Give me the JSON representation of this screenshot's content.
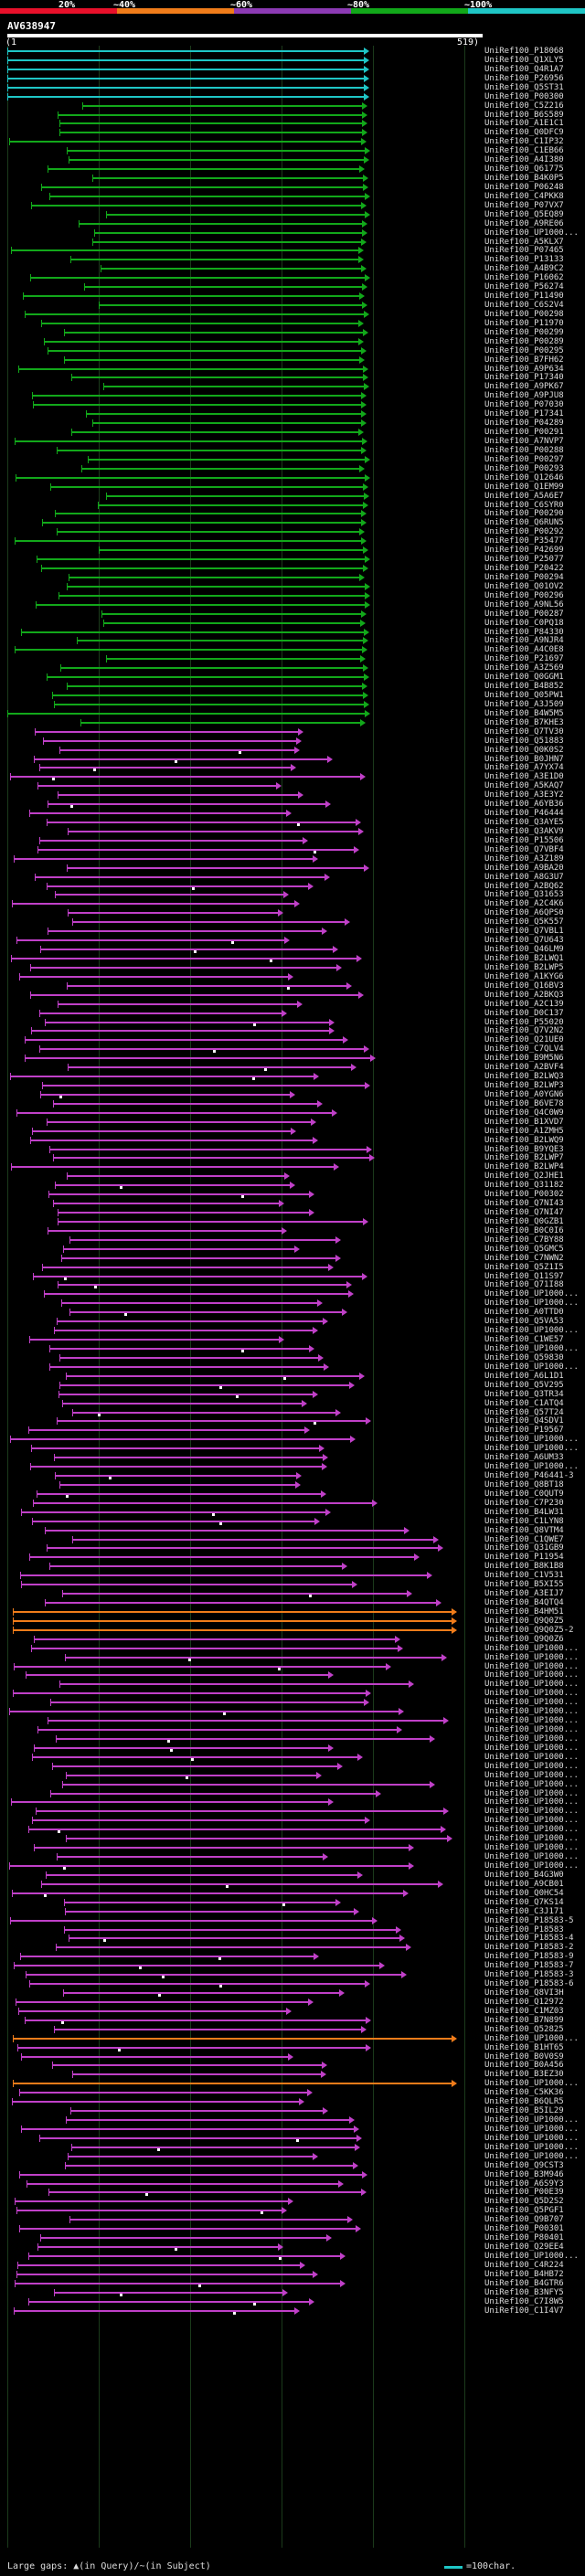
{
  "scale_bar": {
    "segments": [
      {
        "label": "20%",
        "color": "#e8102a"
      },
      {
        "label": "~40%",
        "color": "#f07c1a"
      },
      {
        "label": "~60%",
        "color": "#8c3ab4"
      },
      {
        "label": "~80%",
        "color": "#12a81a"
      },
      {
        "label": "~100%",
        "color": "#1fc6c6"
      }
    ]
  },
  "query": {
    "id": "AV638947",
    "start": "(1",
    "end": "519)"
  },
  "legend": {
    "gaps_text": "Large gaps: ▲(in Query)/~(in Subject)",
    "scale_text": "=100char."
  },
  "colors": {
    "cyan": "#1fc6c6",
    "green": "#12a81a",
    "purple": "#c040c8",
    "orange": "#f07c1a",
    "query": "#ffffff"
  },
  "hits": [
    {
      "label": "UniRef100_P18068",
      "c": "cyan"
    },
    {
      "label": "UniRef100_Q1XLY5",
      "c": "cyan"
    },
    {
      "label": "UniRef100_Q4R1A7",
      "c": "cyan"
    },
    {
      "label": "UniRef100_P26956",
      "c": "cyan"
    },
    {
      "label": "UniRef100_Q5ST31",
      "c": "cyan"
    },
    {
      "label": "UniRef100_P00300",
      "c": "cyan"
    },
    {
      "label": "UniRef100_C5Z216",
      "c": "green"
    },
    {
      "label": "UniRef100_B6S589",
      "c": "green"
    },
    {
      "label": "UniRef100_A1E1C1",
      "c": "green"
    },
    {
      "label": "UniRef100_Q0DFC9",
      "c": "green"
    },
    {
      "label": "UniRef100_C1IP32",
      "c": "green"
    },
    {
      "label": "UniRef100_C1EB66",
      "c": "green"
    },
    {
      "label": "UniRef100_A4I380",
      "c": "green"
    },
    {
      "label": "UniRef100_Q61775",
      "c": "green"
    },
    {
      "label": "UniRef100_B4K0P5",
      "c": "green"
    },
    {
      "label": "UniRef100_P06248",
      "c": "green"
    },
    {
      "label": "UniRef100_C4PKK8",
      "c": "green"
    },
    {
      "label": "UniRef100_P07VX7",
      "c": "green"
    },
    {
      "label": "UniRef100_Q5EQ89",
      "c": "green"
    },
    {
      "label": "UniRef100_A9RE06",
      "c": "green"
    },
    {
      "label": "UniRef100_UP1000...",
      "c": "green"
    },
    {
      "label": "UniRef100_A5KLX7",
      "c": "green"
    },
    {
      "label": "UniRef100_P07465",
      "c": "green"
    },
    {
      "label": "UniRef100_P13133",
      "c": "green"
    },
    {
      "label": "UniRef100_A4B9C2",
      "c": "green"
    },
    {
      "label": "UniRef100_P16062",
      "c": "green"
    },
    {
      "label": "UniRef100_P56274",
      "c": "green"
    },
    {
      "label": "UniRef100_P11490",
      "c": "green"
    },
    {
      "label": "UniRef100_C6S2V4",
      "c": "green"
    },
    {
      "label": "UniRef100_P00298",
      "c": "green"
    },
    {
      "label": "UniRef100_P11970",
      "c": "green"
    },
    {
      "label": "UniRef100_P00299",
      "c": "green"
    },
    {
      "label": "UniRef100_P00289",
      "c": "green"
    },
    {
      "label": "UniRef100_P00295",
      "c": "green"
    },
    {
      "label": "UniRef100_B7FH62",
      "c": "green"
    },
    {
      "label": "UniRef100_A9P634",
      "c": "green"
    },
    {
      "label": "UniRef100_P17340",
      "c": "green"
    },
    {
      "label": "UniRef100_A9PK67",
      "c": "green"
    },
    {
      "label": "UniRef100_A9PJU8",
      "c": "green"
    },
    {
      "label": "UniRef100_P07030",
      "c": "green"
    },
    {
      "label": "UniRef100_P17341",
      "c": "green"
    },
    {
      "label": "UniRef100_P04289",
      "c": "green"
    },
    {
      "label": "UniRef100_P00291",
      "c": "green"
    },
    {
      "label": "UniRef100_A7NVP7",
      "c": "green"
    },
    {
      "label": "UniRef100_P00288",
      "c": "green"
    },
    {
      "label": "UniRef100_P00297",
      "c": "green"
    },
    {
      "label": "UniRef100_P00293",
      "c": "green"
    },
    {
      "label": "UniRef100_Q12646",
      "c": "green"
    },
    {
      "label": "UniRef100_Q1EM99",
      "c": "green"
    },
    {
      "label": "UniRef100_A5A6E7",
      "c": "green"
    },
    {
      "label": "UniRef100_C6SYR0",
      "c": "green"
    },
    {
      "label": "UniRef100_P00290",
      "c": "green"
    },
    {
      "label": "UniRef100_Q6RUN5",
      "c": "green"
    },
    {
      "label": "UniRef100_P00292",
      "c": "green"
    },
    {
      "label": "UniRef100_P35477",
      "c": "green"
    },
    {
      "label": "UniRef100_P42699",
      "c": "green"
    },
    {
      "label": "UniRef100_P25077",
      "c": "green"
    },
    {
      "label": "UniRef100_P20422",
      "c": "green"
    },
    {
      "label": "UniRef100_P00294",
      "c": "green"
    },
    {
      "label": "UniRef100_Q01OV2",
      "c": "green"
    },
    {
      "label": "UniRef100_P00296",
      "c": "green"
    },
    {
      "label": "UniRef100_A9NL56",
      "c": "green"
    },
    {
      "label": "UniRef100_P00287",
      "c": "green"
    },
    {
      "label": "UniRef100_C0PQ18",
      "c": "green"
    },
    {
      "label": "UniRef100_P84330",
      "c": "green"
    },
    {
      "label": "UniRef100_A9NJR4",
      "c": "green"
    },
    {
      "label": "UniRef100_A4C0E8",
      "c": "green"
    },
    {
      "label": "UniRef100_P21697",
      "c": "green"
    },
    {
      "label": "UniRef100_A3Z569",
      "c": "green"
    },
    {
      "label": "UniRef100_Q0GGM1",
      "c": "green"
    },
    {
      "label": "UniRef100_B4B852",
      "c": "green"
    },
    {
      "label": "UniRef100_Q05PW1",
      "c": "green"
    },
    {
      "label": "UniRef100_A3J509",
      "c": "green"
    },
    {
      "label": "UniRef100_B4W5M5",
      "c": "green"
    },
    {
      "label": "UniRef100_B7KHE3",
      "c": "green"
    },
    {
      "label": "UniRef100_Q7TV30",
      "c": "purple"
    },
    {
      "label": "UniRef100_Q51883",
      "c": "purple"
    },
    {
      "label": "UniRef100_Q0K0S2",
      "c": "purple"
    },
    {
      "label": "UniRef100_B0JHN7",
      "c": "purple"
    },
    {
      "label": "UniRef100_A7YX74",
      "c": "purple"
    },
    {
      "label": "UniRef100_A3E1D0",
      "c": "purple"
    },
    {
      "label": "UniRef100_A5KAQ7",
      "c": "purple"
    },
    {
      "label": "UniRef100_A3E3Y2",
      "c": "purple"
    },
    {
      "label": "UniRef100_A6YB36",
      "c": "purple"
    },
    {
      "label": "UniRef100_P46444",
      "c": "purple"
    },
    {
      "label": "UniRef100_Q3AYE5",
      "c": "purple"
    },
    {
      "label": "UniRef100_Q3AKV9",
      "c": "purple"
    },
    {
      "label": "UniRef100_P15506",
      "c": "purple"
    },
    {
      "label": "UniRef100_Q7VBF4",
      "c": "purple"
    },
    {
      "label": "UniRef100_A3Z189",
      "c": "purple"
    },
    {
      "label": "UniRef100_A9BA20",
      "c": "purple"
    },
    {
      "label": "UniRef100_A8G3U7",
      "c": "purple"
    },
    {
      "label": "UniRef100_A2BQ62",
      "c": "purple"
    },
    {
      "label": "UniRef100_Q31653",
      "c": "purple"
    },
    {
      "label": "UniRef100_A2C4K6",
      "c": "purple"
    },
    {
      "label": "UniRef100_A6QPS0",
      "c": "purple"
    },
    {
      "label": "UniRef100_Q5K557",
      "c": "purple"
    },
    {
      "label": "UniRef100_Q7VBL1",
      "c": "purple"
    },
    {
      "label": "UniRef100_Q7U643",
      "c": "purple"
    },
    {
      "label": "UniRef100_Q46LM9",
      "c": "purple"
    },
    {
      "label": "UniRef100_B2LWQ1",
      "c": "purple"
    },
    {
      "label": "UniRef100_B2LWP5",
      "c": "purple"
    },
    {
      "label": "UniRef100_A1KYG6",
      "c": "purple"
    },
    {
      "label": "UniRef100_Q16BV3",
      "c": "purple"
    },
    {
      "label": "UniRef100_A2BKQ3",
      "c": "purple"
    },
    {
      "label": "UniRef100_A2C139",
      "c": "purple"
    },
    {
      "label": "UniRef100_D0C137",
      "c": "purple"
    },
    {
      "label": "UniRef100_P55020",
      "c": "purple"
    },
    {
      "label": "UniRef100_Q7V2N2",
      "c": "purple"
    },
    {
      "label": "UniRef100_Q21UE0",
      "c": "purple"
    },
    {
      "label": "UniRef100_C7QLV4",
      "c": "purple"
    },
    {
      "label": "UniRef100_B9M5N6",
      "c": "purple"
    },
    {
      "label": "UniRef100_A2BVF4",
      "c": "purple"
    },
    {
      "label": "UniRef100_B2LWQ3",
      "c": "purple"
    },
    {
      "label": "UniRef100_B2LWP3",
      "c": "purple"
    },
    {
      "label": "UniRef100_A0YGN6",
      "c": "purple"
    },
    {
      "label": "UniRef100_B6VE78",
      "c": "purple"
    },
    {
      "label": "UniRef100_Q4C0W9",
      "c": "purple"
    },
    {
      "label": "UniRef100_B1XVD7",
      "c": "purple"
    },
    {
      "label": "UniRef100_A1ZMH5",
      "c": "purple"
    },
    {
      "label": "UniRef100_B2LWQ9",
      "c": "purple"
    },
    {
      "label": "UniRef100_B9YQE3",
      "c": "purple"
    },
    {
      "label": "UniRef100_B2LWP7",
      "c": "purple"
    },
    {
      "label": "UniRef100_B2LWP4",
      "c": "purple"
    },
    {
      "label": "UniRef100_Q2JHE1",
      "c": "purple"
    },
    {
      "label": "UniRef100_Q31182",
      "c": "purple"
    },
    {
      "label": "UniRef100_P00302",
      "c": "purple"
    },
    {
      "label": "UniRef100_Q7NI43",
      "c": "purple"
    },
    {
      "label": "UniRef100_Q7NI47",
      "c": "purple"
    },
    {
      "label": "UniRef100_Q0GZB1",
      "c": "purple"
    },
    {
      "label": "UniRef100_B0C0I6",
      "c": "purple"
    },
    {
      "label": "UniRef100_C7BY88",
      "c": "purple"
    },
    {
      "label": "UniRef100_Q5GMC5",
      "c": "purple"
    },
    {
      "label": "UniRef100_C7NWN2",
      "c": "purple"
    },
    {
      "label": "UniRef100_Q5Z1I5",
      "c": "purple"
    },
    {
      "label": "UniRef100_Q11S97",
      "c": "purple"
    },
    {
      "label": "UniRef100_Q71I88",
      "c": "purple"
    },
    {
      "label": "UniRef100_UP1000...",
      "c": "purple"
    },
    {
      "label": "UniRef100_UP1000...",
      "c": "purple"
    },
    {
      "label": "UniRef100_A0TTD0",
      "c": "purple"
    },
    {
      "label": "UniRef100_Q5VA53",
      "c": "purple"
    },
    {
      "label": "UniRef100_UP1000...",
      "c": "purple"
    },
    {
      "label": "UniRef100_C1WE57",
      "c": "purple"
    },
    {
      "label": "UniRef100_UP1000...",
      "c": "purple"
    },
    {
      "label": "UniRef100_Q59830",
      "c": "purple"
    },
    {
      "label": "UniRef100_UP1000...",
      "c": "purple"
    },
    {
      "label": "UniRef100_A6L1D1",
      "c": "purple"
    },
    {
      "label": "UniRef100_Q5V295",
      "c": "purple"
    },
    {
      "label": "UniRef100_Q3TR34",
      "c": "purple"
    },
    {
      "label": "UniRef100_C1ATQ4",
      "c": "purple"
    },
    {
      "label": "UniRef100_Q57T24",
      "c": "purple"
    },
    {
      "label": "UniRef100_Q4SDV1",
      "c": "purple"
    },
    {
      "label": "UniRef100_P19567",
      "c": "purple"
    },
    {
      "label": "UniRef100_UP1000...",
      "c": "purple"
    },
    {
      "label": "UniRef100_UP1000...",
      "c": "purple"
    },
    {
      "label": "UniRef100_A6UM33",
      "c": "purple"
    },
    {
      "label": "UniRef100_UP1000...",
      "c": "purple"
    },
    {
      "label": "UniRef100_P46441-3",
      "c": "purple"
    },
    {
      "label": "UniRef100_Q8BT18",
      "c": "purple"
    },
    {
      "label": "UniRef100_C0QUT9",
      "c": "purple"
    },
    {
      "label": "UniRef100_C7P230",
      "c": "purple"
    },
    {
      "label": "UniRef100_B4LW31",
      "c": "purple"
    },
    {
      "label": "UniRef100_C1LYN8",
      "c": "purple"
    },
    {
      "label": "UniRef100_Q8VTM4",
      "c": "purple"
    },
    {
      "label": "UniRef100_C1QWE7",
      "c": "purple"
    },
    {
      "label": "UniRef100_Q31GB9",
      "c": "purple"
    },
    {
      "label": "UniRef100_P11954",
      "c": "purple"
    },
    {
      "label": "UniRef100_B8K1B8",
      "c": "purple"
    },
    {
      "label": "UniRef100_C1V531",
      "c": "purple"
    },
    {
      "label": "UniRef100_B5XI55",
      "c": "purple"
    },
    {
      "label": "UniRef100_A3EIJ7",
      "c": "purple"
    },
    {
      "label": "UniRef100_B4QTQ4",
      "c": "purple"
    },
    {
      "label": "UniRef100_B4HM51",
      "c": "orange"
    },
    {
      "label": "UniRef100_Q9Q0Z5",
      "c": "orange"
    },
    {
      "label": "UniRef100_Q9Q0Z5-2",
      "c": "orange"
    },
    {
      "label": "UniRef100_Q9Q0Z6",
      "c": "purple"
    },
    {
      "label": "UniRef100_UP1000...",
      "c": "purple"
    },
    {
      "label": "UniRef100_UP1000...",
      "c": "purple"
    },
    {
      "label": "UniRef100_UP1000...",
      "c": "purple"
    },
    {
      "label": "UniRef100_UP1000...",
      "c": "purple"
    },
    {
      "label": "UniRef100_UP1000...",
      "c": "purple"
    },
    {
      "label": "UniRef100_UP1000...",
      "c": "purple"
    },
    {
      "label": "UniRef100_UP1000...",
      "c": "purple"
    },
    {
      "label": "UniRef100_UP1000...",
      "c": "purple"
    },
    {
      "label": "UniRef100_UP1000...",
      "c": "purple"
    },
    {
      "label": "UniRef100_UP1000...",
      "c": "purple"
    },
    {
      "label": "UniRef100_UP1000...",
      "c": "purple"
    },
    {
      "label": "UniRef100_UP1000...",
      "c": "purple"
    },
    {
      "label": "UniRef100_UP1000...",
      "c": "purple"
    },
    {
      "label": "UniRef100_UP1000...",
      "c": "purple"
    },
    {
      "label": "UniRef100_UP1000...",
      "c": "purple"
    },
    {
      "label": "UniRef100_UP1000...",
      "c": "purple"
    },
    {
      "label": "UniRef100_UP1000...",
      "c": "purple"
    },
    {
      "label": "UniRef100_UP1000...",
      "c": "purple"
    },
    {
      "label": "UniRef100_UP1000...",
      "c": "purple"
    },
    {
      "label": "UniRef100_UP1000...",
      "c": "purple"
    },
    {
      "label": "UniRef100_UP1000...",
      "c": "purple"
    },
    {
      "label": "UniRef100_UP1000...",
      "c": "purple"
    },
    {
      "label": "UniRef100_UP1000...",
      "c": "purple"
    },
    {
      "label": "UniRef100_UP1000...",
      "c": "purple"
    },
    {
      "label": "UniRef100_UP1000...",
      "c": "purple"
    },
    {
      "label": "UniRef100_B4G3W0",
      "c": "purple"
    },
    {
      "label": "UniRef100_A9CB01",
      "c": "purple"
    },
    {
      "label": "UniRef100_Q0HC54",
      "c": "purple"
    },
    {
      "label": "UniRef100_Q7KS14",
      "c": "purple"
    },
    {
      "label": "UniRef100_C3J171",
      "c": "purple"
    },
    {
      "label": "UniRef100_P18583-5",
      "c": "purple"
    },
    {
      "label": "UniRef100_P18583",
      "c": "purple"
    },
    {
      "label": "UniRef100_P18583-4",
      "c": "purple"
    },
    {
      "label": "UniRef100_P18583-2",
      "c": "purple"
    },
    {
      "label": "UniRef100_P18583-9",
      "c": "purple"
    },
    {
      "label": "UniRef100_P18583-7",
      "c": "purple"
    },
    {
      "label": "UniRef100_P18583-3",
      "c": "purple"
    },
    {
      "label": "UniRef100_P18583-6",
      "c": "purple"
    },
    {
      "label": "UniRef100_Q8VI3H",
      "c": "purple"
    },
    {
      "label": "UniRef100_Q12972",
      "c": "purple"
    },
    {
      "label": "UniRef100_C1MZ03",
      "c": "purple"
    },
    {
      "label": "UniRef100_B7N899",
      "c": "purple"
    },
    {
      "label": "UniRef100_Q52825",
      "c": "purple"
    },
    {
      "label": "UniRef100_UP1000...",
      "c": "orange"
    },
    {
      "label": "UniRef100_B1HT65",
      "c": "purple"
    },
    {
      "label": "UniRef100_B0V0S9",
      "c": "purple"
    },
    {
      "label": "UniRef100_B0A456",
      "c": "purple"
    },
    {
      "label": "UniRef100_B3EZ30",
      "c": "purple"
    },
    {
      "label": "UniRef100_UP1000...",
      "c": "orange"
    },
    {
      "label": "UniRef100_C5KK36",
      "c": "purple"
    },
    {
      "label": "UniRef100_B6QLR5",
      "c": "purple"
    },
    {
      "label": "UniRef100_B5IL29",
      "c": "purple"
    },
    {
      "label": "UniRef100_UP1000...",
      "c": "purple"
    },
    {
      "label": "UniRef100_UP1000...",
      "c": "purple"
    },
    {
      "label": "UniRef100_UP1000...",
      "c": "purple"
    },
    {
      "label": "UniRef100_UP1000...",
      "c": "purple"
    },
    {
      "label": "UniRef100_UP1000...",
      "c": "purple"
    },
    {
      "label": "UniRef100_Q9CST3",
      "c": "purple"
    },
    {
      "label": "UniRef100_B3M946",
      "c": "purple"
    },
    {
      "label": "UniRef100_A6S9Y3",
      "c": "purple"
    },
    {
      "label": "UniRef100_P00E39",
      "c": "purple"
    },
    {
      "label": "UniRef100_Q5D2S2",
      "c": "purple"
    },
    {
      "label": "UniRef100_Q5PGF1",
      "c": "purple"
    },
    {
      "label": "UniRef100_Q9B707",
      "c": "purple"
    },
    {
      "label": "UniRef100_P00301",
      "c": "purple"
    },
    {
      "label": "UniRef100_P80401",
      "c": "purple"
    },
    {
      "label": "UniRef100_Q29EE4",
      "c": "purple"
    },
    {
      "label": "UniRef100_UP1000...",
      "c": "purple"
    },
    {
      "label": "UniRef100_C4R224",
      "c": "purple"
    },
    {
      "label": "UniRef100_B4HB72",
      "c": "purple"
    },
    {
      "label": "UniRef100_B4GTR6",
      "c": "purple"
    },
    {
      "label": "UniRef100_B3NFY5",
      "c": "purple"
    },
    {
      "label": "UniRef100_C7I8W5",
      "c": "purple"
    },
    {
      "label": "UniRef100_C1I4V7",
      "c": "purple"
    }
  ]
}
